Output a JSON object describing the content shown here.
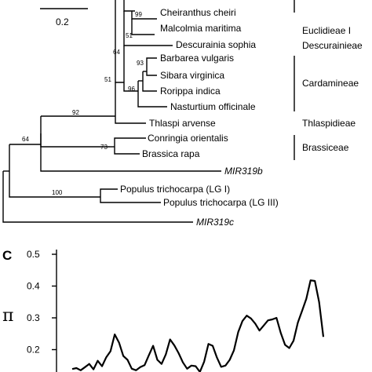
{
  "tree": {
    "scale_label": "0.2",
    "taxa": [
      {
        "label": "Cheiranthus cheiri",
        "italic": false
      },
      {
        "label": "Malcolmia maritima",
        "italic": false
      },
      {
        "label": "Descurainia sophia",
        "italic": false
      },
      {
        "label": "Barbarea vulgaris",
        "italic": false
      },
      {
        "label": "Sibara virginica",
        "italic": false
      },
      {
        "label": "Rorippa indica",
        "italic": false
      },
      {
        "label": "Nasturtium officinale",
        "italic": false
      },
      {
        "label": "Thlaspi arvense",
        "italic": false
      },
      {
        "label": "Conringia orientalis",
        "italic": false
      },
      {
        "label": "Brassica rapa",
        "italic": false
      },
      {
        "label": "MIR319b",
        "italic": true
      },
      {
        "label": "Populus trichocarpa (LG I)",
        "italic": false
      },
      {
        "label": "Populus trichocarpa (LG III)",
        "italic": false
      },
      {
        "label": "MIR319c",
        "italic": true
      }
    ],
    "bootstrap": [
      "99",
      "51",
      "64",
      "93",
      "96",
      "51",
      "92",
      "73",
      "64",
      "100"
    ],
    "clades": [
      "Euclidieae I",
      "Descurainieae",
      "Cardamineae",
      "Thlaspidieae",
      "Brassiceae"
    ]
  },
  "panel_c": {
    "letter": "C",
    "ylabel": "π"
  },
  "chart_data": {
    "type": "line",
    "title": "",
    "xlabel": "",
    "ylabel": "π",
    "ylim": [
      0.1,
      0.5
    ],
    "yticks": [
      "0.5",
      "0.4",
      "0.3",
      "0.2"
    ],
    "series": [
      {
        "values": [
          0.139,
          0.142,
          0.135,
          0.145,
          0.155,
          0.138,
          0.165,
          0.148,
          0.176,
          0.195,
          0.248,
          0.222,
          0.18,
          0.168,
          0.14,
          0.135,
          0.145,
          0.151,
          0.182,
          0.212,
          0.168,
          0.155,
          0.185,
          0.232,
          0.213,
          0.189,
          0.16,
          0.14,
          0.15,
          0.148,
          0.13,
          0.162,
          0.218,
          0.212,
          0.175,
          0.146,
          0.15,
          0.168,
          0.198,
          0.255,
          0.29,
          0.307,
          0.298,
          0.282,
          0.26,
          0.276,
          0.292,
          0.295,
          0.3,
          0.252,
          0.215,
          0.205,
          0.228,
          0.285,
          0.322,
          0.36,
          0.418,
          0.416,
          0.35,
          0.24
        ]
      }
    ]
  }
}
